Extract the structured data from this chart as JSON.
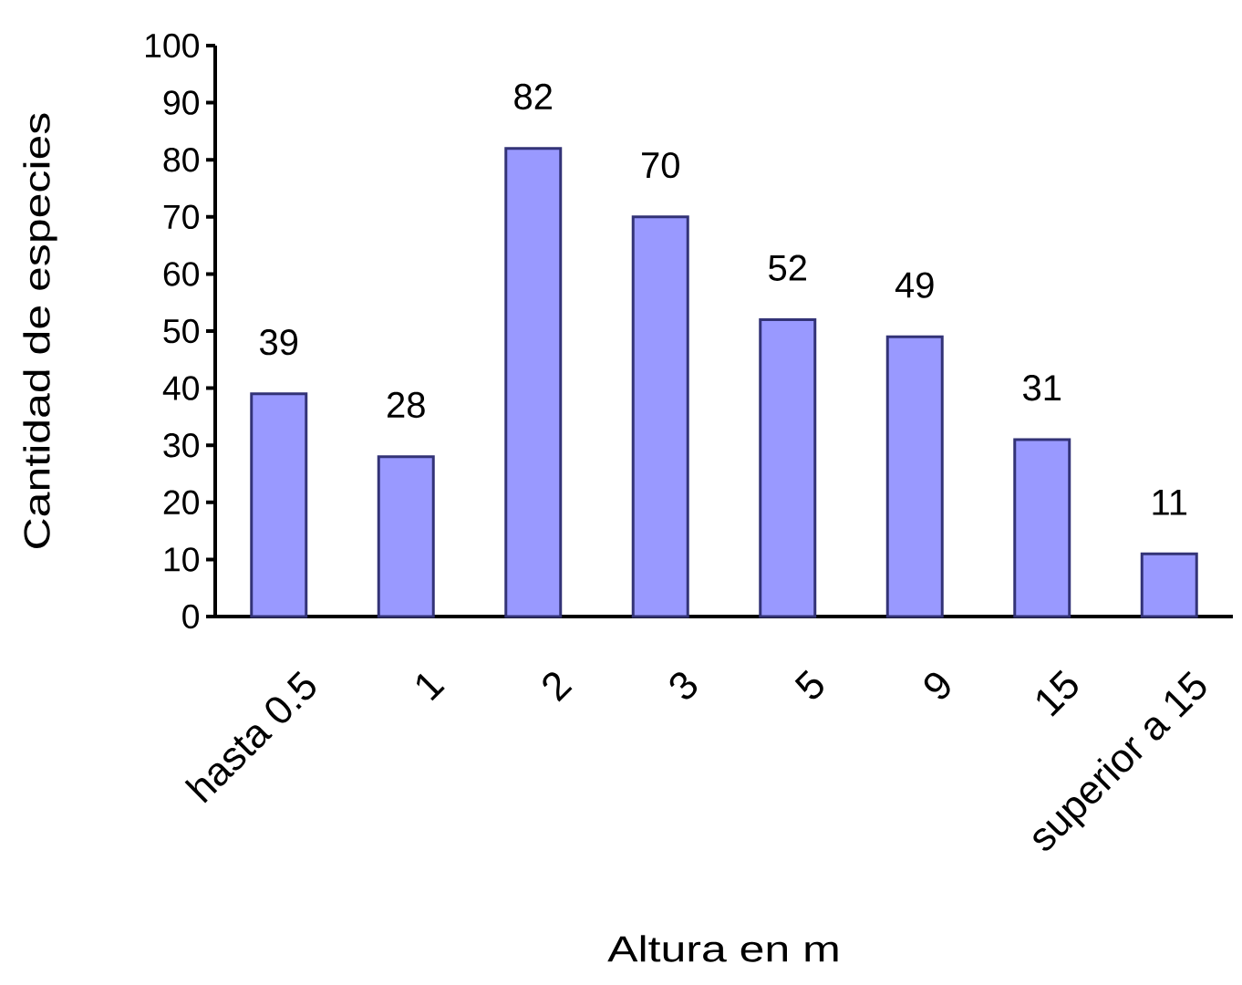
{
  "chart_data": {
    "type": "bar",
    "xlabel": "Altura en m",
    "ylabel": "Cantidad de especies",
    "categories": [
      "hasta 0.5",
      "1",
      "2",
      "3",
      "5",
      "9",
      "15",
      "superior a 15"
    ],
    "values": [
      39,
      28,
      82,
      70,
      52,
      49,
      31,
      11
    ],
    "color": "#9999ff",
    "ylim": [
      0,
      100
    ],
    "yticks": [
      0,
      10,
      20,
      30,
      40,
      50,
      60,
      70,
      80,
      90,
      100
    ],
    "data_labels": true
  }
}
